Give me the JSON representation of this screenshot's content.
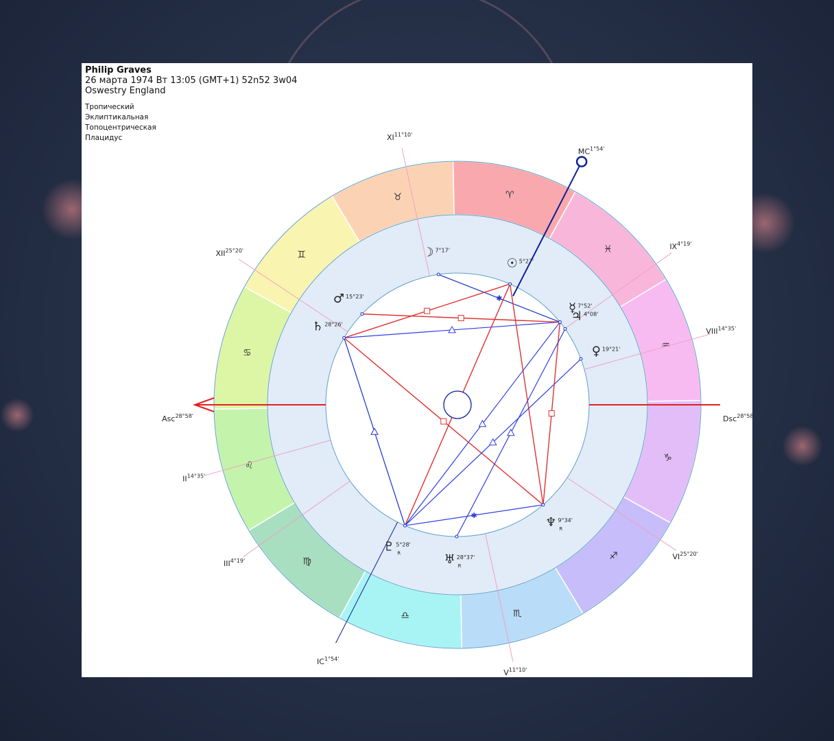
{
  "person": {
    "name": "Philip Graves",
    "datetime": "26 марта 1974  Вт  13:05 (GMT+1) 52n52  3w04",
    "location": "Oswestry England"
  },
  "settings": [
    "Тропический",
    "Эклиптикальная",
    "Топоцентрическая",
    "Плацидус"
  ],
  "ascendant": 118.97,
  "zodiac": [
    {
      "name": "aries",
      "glyph": "♈",
      "color": "#f9a9ad"
    },
    {
      "name": "taurus",
      "glyph": "♉",
      "color": "#fbd3b4"
    },
    {
      "name": "gemini",
      "glyph": "♊",
      "color": "#f9f4b0"
    },
    {
      "name": "cancer",
      "glyph": "♋",
      "color": "#ddf6a6"
    },
    {
      "name": "leo",
      "glyph": "♌",
      "color": "#c4f4ab"
    },
    {
      "name": "virgo",
      "glyph": "♍",
      "color": "#a8dfc0"
    },
    {
      "name": "libra",
      "glyph": "♎",
      "color": "#a8f4f5"
    },
    {
      "name": "scorpio",
      "glyph": "♏",
      "color": "#b9dcf8"
    },
    {
      "name": "sagittarius",
      "glyph": "♐",
      "color": "#c7bdfa"
    },
    {
      "name": "capricorn",
      "glyph": "♑",
      "color": "#e3bdf8"
    },
    {
      "name": "aquarius",
      "glyph": "♒",
      "color": "#f8bbf1"
    },
    {
      "name": "pisces",
      "glyph": "♓",
      "color": "#f9b6db"
    }
  ],
  "axes": [
    {
      "id": "asc",
      "label": "Asc",
      "deg": "28°58'",
      "lon": 118.97
    },
    {
      "id": "dsc",
      "label": "Dsc",
      "deg": "28°58'",
      "lon": 298.97
    },
    {
      "id": "mc",
      "label": "MC",
      "deg": "1°54'",
      "lon": 1.9
    },
    {
      "id": "ic",
      "label": "IC",
      "deg": "1°54'",
      "lon": 181.9
    }
  ],
  "cusps": [
    {
      "label": "II",
      "deg": "14°35'",
      "lon": 134.58
    },
    {
      "label": "III",
      "deg": "4°19'",
      "lon": 154.32
    },
    {
      "label": "V",
      "deg": "11°10'",
      "lon": 221.17
    },
    {
      "label": "VI",
      "deg": "25°20'",
      "lon": 265.33
    },
    {
      "label": "VIII",
      "deg": "14°35'",
      "lon": 314.58
    },
    {
      "label": "IX",
      "deg": "4°19'",
      "lon": 334.32
    },
    {
      "label": "XI",
      "deg": "11°10'",
      "lon": 41.17
    },
    {
      "label": "XII",
      "deg": "25°20'",
      "lon": 85.33
    }
  ],
  "planets": [
    {
      "id": "sun",
      "glyph": "☉",
      "deg": "5°27'",
      "retro": "",
      "lon": 5.45
    },
    {
      "id": "moon",
      "glyph": "☽",
      "deg": "7°17'",
      "retro": "",
      "lon": 37.28
    },
    {
      "id": "mercury",
      "glyph": "☿",
      "deg": "7°52'",
      "retro": "",
      "lon": 337.87
    },
    {
      "id": "venus",
      "glyph": "♀",
      "deg": "19°21'",
      "retro": "",
      "lon": 319.35
    },
    {
      "id": "mars",
      "glyph": "♂",
      "deg": "15°23'",
      "retro": "",
      "lon": 75.38
    },
    {
      "id": "jupiter",
      "glyph": "♃",
      "deg": "4°08'",
      "retro": "",
      "lon": 334.13
    },
    {
      "id": "saturn",
      "glyph": "♄",
      "deg": "28°26'",
      "retro": "",
      "lon": 88.43
    },
    {
      "id": "uranus",
      "glyph": "♅",
      "deg": "28°37'",
      "retro": "R",
      "lon": 208.62
    },
    {
      "id": "neptune",
      "glyph": "♆",
      "deg": "9°34'",
      "retro": "R",
      "lon": 249.57
    },
    {
      "id": "pluto",
      "glyph": "♇",
      "deg": "5°28'",
      "retro": "R",
      "lon": 185.47
    }
  ],
  "aspects": [
    {
      "from": "moon",
      "to": "mercury",
      "type": "sextile",
      "color": "#1530c8"
    },
    {
      "from": "saturn",
      "to": "mercury",
      "type": "trine",
      "color": "#2f3fe0"
    },
    {
      "from": "mars",
      "to": "mercury",
      "type": "square",
      "color": "#e03030"
    },
    {
      "from": "saturn",
      "to": "pluto",
      "type": "trine",
      "color": "#1530c8"
    },
    {
      "from": "saturn",
      "to": "neptune",
      "type": "square",
      "color": "#e03030"
    },
    {
      "from": "sun",
      "to": "pluto",
      "type": "opposition",
      "color": "#e03030"
    },
    {
      "from": "sun",
      "to": "neptune",
      "type": "",
      "color": "#e03030"
    },
    {
      "from": "sun",
      "to": "saturn",
      "type": "square",
      "color": "#e03030"
    },
    {
      "from": "mercury",
      "to": "pluto",
      "type": "trine",
      "color": "#2f3fe0"
    },
    {
      "from": "venus",
      "to": "pluto",
      "type": "trine",
      "color": "#2f3fe0"
    },
    {
      "from": "pluto",
      "to": "neptune",
      "type": "sextile",
      "color": "#2f3fe0"
    },
    {
      "from": "mercury",
      "to": "neptune",
      "type": "square",
      "color": "#e03030"
    },
    {
      "from": "jupiter",
      "to": "uranus",
      "type": "trine",
      "color": "#2f3fe0"
    }
  ],
  "colors": {
    "house_zone": "#e1ecf8",
    "axis_asc": "#e02020",
    "axis_mc": "#0c1e9a",
    "cusp_line": "#f0a0c0",
    "ring_stroke": "#5da0c8"
  }
}
